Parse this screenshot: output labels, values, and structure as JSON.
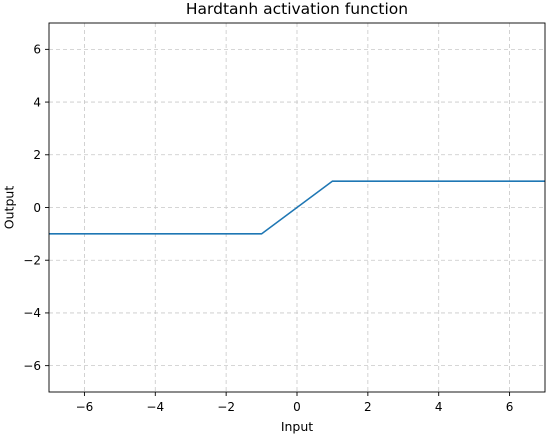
{
  "chart_data": {
    "type": "line",
    "title": "Hardtanh activation function",
    "xlabel": "Input",
    "ylabel": "Output",
    "xlim": [
      -7,
      7
    ],
    "ylim": [
      -7,
      7
    ],
    "x_ticks": [
      -6,
      -4,
      -2,
      0,
      2,
      4,
      6
    ],
    "x_tick_labels": [
      "−6",
      "−4",
      "−2",
      "0",
      "2",
      "4",
      "6"
    ],
    "y_ticks": [
      -6,
      -4,
      -2,
      0,
      2,
      4,
      6
    ],
    "y_tick_labels": [
      "−6",
      "−4",
      "−2",
      "0",
      "2",
      "4",
      "6"
    ],
    "grid": true,
    "series": [
      {
        "color": "#1f77b4",
        "x": [
          -7,
          -1,
          1,
          7
        ],
        "y": [
          -1,
          -1,
          1,
          1
        ]
      }
    ]
  }
}
